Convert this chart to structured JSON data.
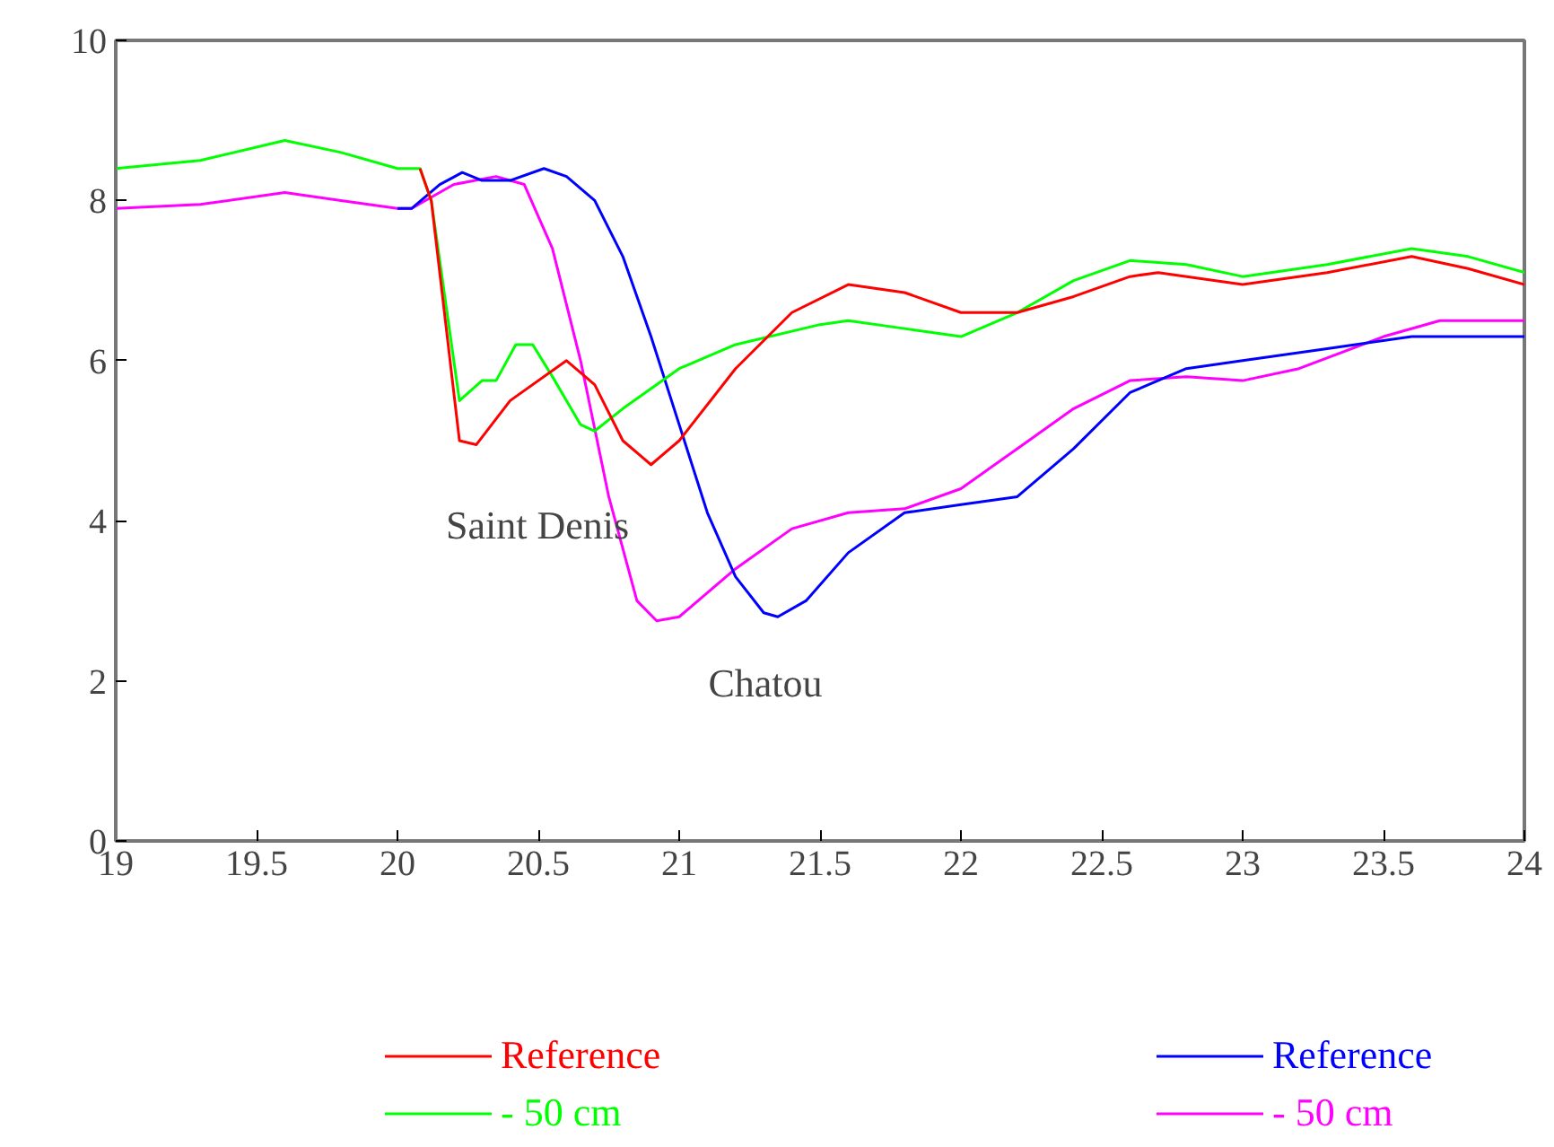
{
  "chart_data": {
    "type": "line",
    "xlim": [
      19,
      24
    ],
    "ylim": [
      0,
      10
    ],
    "xticks": [
      19,
      19.5,
      20,
      20.5,
      21,
      21.5,
      22,
      22.5,
      23,
      23.5,
      24
    ],
    "yticks": [
      0,
      2,
      4,
      6,
      8,
      10
    ],
    "grid": false,
    "legend": "bottom",
    "line_style": "solid",
    "marker": "none",
    "annotations": [
      "Saint Denis",
      "Chatou"
    ],
    "series": [
      {
        "name": "Reference",
        "color": "#ff0000",
        "x": [
          20.08,
          20.12,
          20.22,
          20.28,
          20.4,
          20.6,
          20.7,
          20.8,
          20.9,
          21.0,
          21.2,
          21.4,
          21.6,
          21.8,
          22.0,
          22.2,
          22.4,
          22.6,
          22.7,
          23.0,
          23.3,
          23.6,
          23.8,
          24.0
        ],
        "values": [
          8.4,
          8.0,
          5.0,
          4.95,
          5.5,
          6.0,
          5.7,
          5.0,
          4.7,
          5.0,
          5.9,
          6.6,
          6.95,
          6.85,
          6.6,
          6.6,
          6.8,
          7.05,
          7.1,
          6.95,
          7.1,
          7.3,
          7.15,
          6.95
        ]
      },
      {
        "name": "- 50 cm",
        "color": "#00ff00",
        "x": [
          19,
          19.3,
          19.6,
          19.8,
          20.0,
          20.08,
          20.12,
          20.22,
          20.3,
          20.35,
          20.42,
          20.48,
          20.55,
          20.65,
          20.7,
          20.8,
          21.0,
          21.2,
          21.5,
          21.6,
          21.8,
          22.0,
          22.2,
          22.4,
          22.6,
          22.8,
          23.0,
          23.3,
          23.6,
          23.8,
          24.0
        ],
        "values": [
          8.4,
          8.5,
          8.75,
          8.6,
          8.4,
          8.4,
          8.0,
          5.5,
          5.75,
          5.75,
          6.2,
          6.2,
          5.8,
          5.2,
          5.12,
          5.4,
          5.9,
          6.2,
          6.45,
          6.5,
          6.4,
          6.3,
          6.6,
          7.0,
          7.25,
          7.2,
          7.05,
          7.2,
          7.4,
          7.3,
          7.1
        ]
      },
      {
        "name": "Reference",
        "color": "#0000ff",
        "x": [
          20.0,
          20.05,
          20.15,
          20.23,
          20.3,
          20.4,
          20.52,
          20.6,
          20.7,
          20.8,
          20.9,
          21.0,
          21.1,
          21.2,
          21.3,
          21.35,
          21.45,
          21.6,
          21.8,
          22.0,
          22.2,
          22.4,
          22.6,
          22.8,
          23.0,
          23.3,
          23.6,
          24.0
        ],
        "values": [
          7.9,
          7.9,
          8.2,
          8.35,
          8.25,
          8.25,
          8.4,
          8.3,
          8.0,
          7.3,
          6.3,
          5.2,
          4.1,
          3.3,
          2.85,
          2.8,
          3.0,
          3.6,
          4.1,
          4.2,
          4.3,
          4.9,
          5.6,
          5.9,
          6.0,
          6.15,
          6.3,
          6.3
        ]
      },
      {
        "name": "- 50 cm",
        "color": "#ff00ff",
        "x": [
          19,
          19.3,
          19.6,
          19.8,
          20.0,
          20.05,
          20.2,
          20.35,
          20.45,
          20.55,
          20.65,
          20.75,
          20.85,
          20.92,
          21.0,
          21.2,
          21.4,
          21.6,
          21.8,
          22.0,
          22.2,
          22.4,
          22.6,
          22.8,
          23.0,
          23.2,
          23.5,
          23.7,
          24.0
        ],
        "values": [
          7.9,
          7.95,
          8.1,
          8.0,
          7.9,
          7.9,
          8.2,
          8.3,
          8.2,
          7.4,
          6.0,
          4.3,
          3.0,
          2.75,
          2.8,
          3.4,
          3.9,
          4.1,
          4.15,
          4.4,
          4.9,
          5.4,
          5.75,
          5.8,
          5.75,
          5.9,
          6.3,
          6.5,
          6.5
        ]
      }
    ]
  }
}
